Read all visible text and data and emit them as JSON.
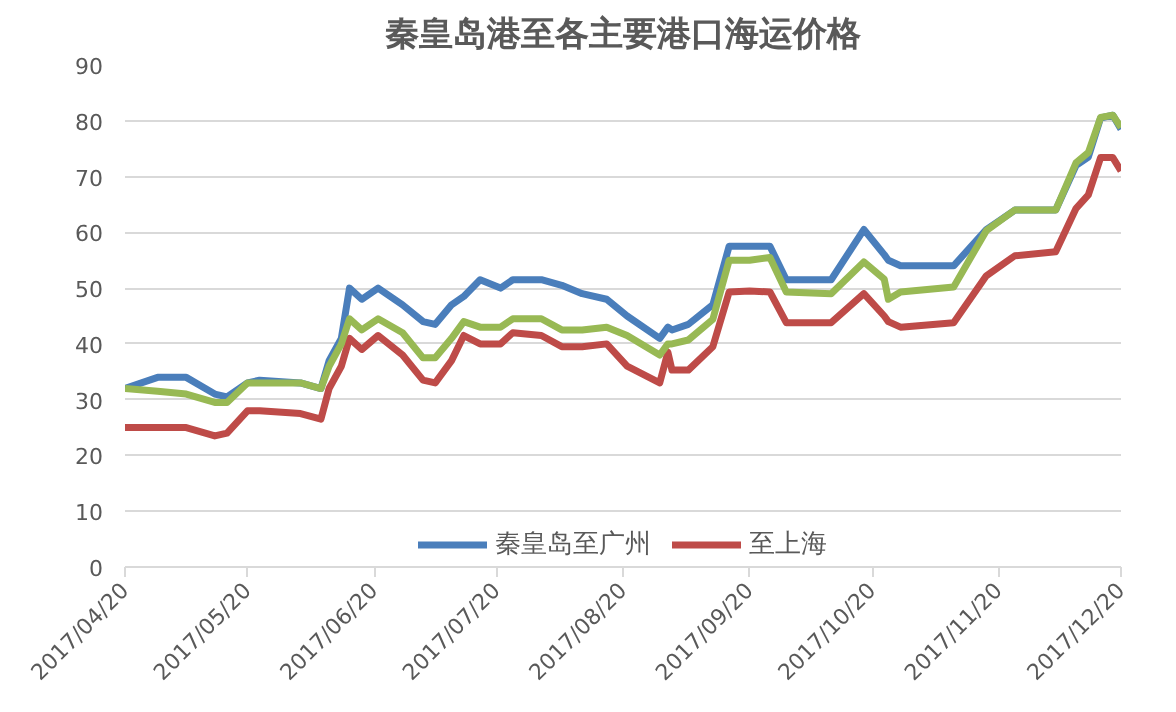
{
  "chart_data": {
    "type": "line",
    "title": "秦皇岛港至各主要港口海运价格",
    "x": [
      "2017-04-20",
      "2017-04-28",
      "2017-05-05",
      "2017-05-12",
      "2017-05-15",
      "2017-05-20",
      "2017-05-23",
      "2017-06-02",
      "2017-06-07",
      "2017-06-09",
      "2017-06-12",
      "2017-06-14",
      "2017-06-17",
      "2017-06-21",
      "2017-06-27",
      "2017-07-02",
      "2017-07-05",
      "2017-07-09",
      "2017-07-12",
      "2017-07-16",
      "2017-07-21",
      "2017-07-24",
      "2017-07-31",
      "2017-08-05",
      "2017-08-10",
      "2017-08-16",
      "2017-08-21",
      "2017-08-29",
      "2017-08-31",
      "2017-09-01",
      "2017-09-05",
      "2017-09-11",
      "2017-09-15",
      "2017-09-20",
      "2017-09-25",
      "2017-09-29",
      "2017-10-10",
      "2017-10-18",
      "2017-10-23",
      "2017-10-24",
      "2017-10-27",
      "2017-11-09",
      "2017-11-17",
      "2017-11-24",
      "2017-12-04",
      "2017-12-09",
      "2017-12-12",
      "2017-12-15",
      "2017-12-18",
      "2017-12-20"
    ],
    "series": [
      {
        "name": "秦皇岛至广州",
        "color": "#4a7ebb",
        "values": [
          32,
          34,
          34,
          31,
          30.5,
          33,
          33.5,
          33,
          32,
          37,
          41,
          50,
          48,
          50,
          47,
          44,
          43.5,
          47,
          48.5,
          51.5,
          50,
          51.5,
          51.5,
          50.5,
          49,
          48,
          45,
          41,
          43,
          42.5,
          43.5,
          47,
          57.5,
          57.5,
          57.5,
          51.5,
          51.5,
          60.5,
          56,
          55,
          54,
          54,
          60.5,
          64,
          64,
          72,
          73.5,
          80.5,
          81,
          78.5
        ]
      },
      {
        "name": "至上海",
        "color": "#be4b48",
        "values": [
          25,
          25,
          25,
          23.5,
          24,
          28,
          28,
          27.5,
          26.5,
          32,
          36,
          41,
          39,
          41.5,
          38,
          33.5,
          33,
          37,
          41.5,
          40,
          40,
          42,
          41.5,
          39.5,
          39.5,
          40,
          36,
          33,
          38.5,
          35.3,
          35.3,
          39.5,
          49.3,
          49.5,
          49.3,
          43.8,
          43.8,
          49,
          45,
          44,
          43,
          43.8,
          52.2,
          55.8,
          56.5,
          64.3,
          66.7,
          73.4,
          73.4,
          71
        ]
      },
      {
        "color": "#98b954",
        "values": [
          32,
          31.5,
          31,
          29.5,
          29.5,
          33,
          33,
          33,
          32,
          36,
          40,
          44.5,
          42.5,
          44.5,
          42,
          37.5,
          37.5,
          41,
          44,
          43,
          43,
          44.5,
          44.5,
          42.5,
          42.5,
          43,
          41.5,
          38,
          40,
          40,
          40.7,
          44.4,
          55,
          55,
          55.5,
          49.3,
          49,
          54.7,
          51.6,
          48,
          49.3,
          50.2,
          60.3,
          64,
          64,
          72.5,
          74.3,
          80.6,
          81,
          78.8
        ]
      }
    ],
    "xlim": [
      "2017-04-20",
      "2017-12-20"
    ],
    "xticks": [
      {
        "value": "2017-04-20",
        "label": "2017/04/20"
      },
      {
        "value": "2017-05-20",
        "label": "2017/05/20"
      },
      {
        "value": "2017-06-20",
        "label": "2017/06/20"
      },
      {
        "value": "2017-07-20",
        "label": "2017/07/20"
      },
      {
        "value": "2017-08-20",
        "label": "2017/08/20"
      },
      {
        "value": "2017-09-20",
        "label": "2017/09/20"
      },
      {
        "value": "2017-10-20",
        "label": "2017/10/20"
      },
      {
        "value": "2017-11-20",
        "label": "2017/11/20"
      },
      {
        "value": "2017-12-20",
        "label": "2017/12/20"
      }
    ],
    "ylim": [
      0,
      90
    ],
    "yticks": [
      0,
      10,
      20,
      30,
      40,
      50,
      60,
      70,
      80,
      90
    ],
    "grid": "y",
    "legend": "bottom",
    "line_style": "solid",
    "marker": "none"
  }
}
